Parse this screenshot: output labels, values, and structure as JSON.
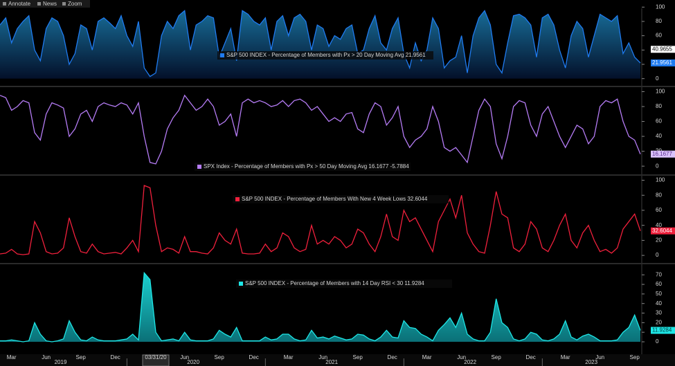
{
  "toolbar": [
    "Annotate",
    "News",
    "Zoom"
  ],
  "chart_data": [
    {
      "type": "area",
      "series": [
        {
          "name": "S&P 500 INDEX - Percentage of Members with Px > 20 Day Moving Avg 21.9561",
          "color": "#1f7bf0",
          "values": [
            75,
            85,
            50,
            70,
            80,
            88,
            40,
            25,
            70,
            85,
            80,
            60,
            20,
            35,
            75,
            70,
            40,
            80,
            85,
            78,
            70,
            88,
            60,
            45,
            80,
            15,
            3,
            8,
            60,
            80,
            70,
            88,
            95,
            40,
            75,
            80,
            88,
            85,
            30,
            50,
            70,
            25,
            95,
            90,
            80,
            75,
            85,
            40,
            80,
            88,
            60,
            85,
            90,
            80,
            40,
            75,
            70,
            45,
            60,
            55,
            70,
            75,
            35,
            40,
            70,
            88,
            50,
            40,
            70,
            85,
            35,
            15,
            50,
            25,
            40,
            85,
            70,
            15,
            25,
            30,
            60,
            8,
            60,
            85,
            95,
            75,
            20,
            8,
            50,
            88,
            90,
            85,
            75,
            30,
            85,
            90,
            75,
            40,
            15,
            60,
            80,
            70,
            30,
            60,
            90,
            85,
            80,
            88,
            35,
            50,
            30,
            21.9561
          ]
        }
      ],
      "ylim": [
        -10,
        108
      ],
      "yticks": [
        0,
        20,
        40,
        60,
        80,
        100
      ],
      "tags": [
        {
          "value": 40.9655,
          "color": "#ffffff",
          "text_color": "#000000"
        },
        {
          "value": 21.9561,
          "color": "#1f7bf0",
          "text_color": "#ffffff"
        }
      ]
    },
    {
      "type": "line",
      "series": [
        {
          "name": "SPX Index - Percentage of Members with Px > 50 Day Moving Avg 16.1677  -5.7884",
          "color": "#b57cf5",
          "values": [
            95,
            92,
            75,
            80,
            88,
            85,
            45,
            35,
            70,
            85,
            82,
            78,
            40,
            50,
            70,
            75,
            60,
            80,
            85,
            82,
            80,
            85,
            82,
            70,
            85,
            40,
            5,
            3,
            20,
            50,
            65,
            75,
            95,
            85,
            75,
            80,
            90,
            80,
            55,
            60,
            70,
            40,
            85,
            90,
            85,
            88,
            85,
            80,
            82,
            88,
            80,
            88,
            90,
            85,
            75,
            80,
            70,
            60,
            65,
            60,
            70,
            72,
            50,
            45,
            70,
            85,
            80,
            55,
            65,
            80,
            40,
            25,
            35,
            40,
            50,
            80,
            60,
            25,
            20,
            25,
            15,
            5,
            40,
            75,
            90,
            80,
            30,
            10,
            40,
            80,
            88,
            85,
            55,
            40,
            70,
            80,
            60,
            40,
            25,
            40,
            55,
            50,
            30,
            40,
            80,
            88,
            85,
            90,
            60,
            40,
            35,
            16.1677
          ]
        }
      ],
      "ylim": [
        -11,
        106
      ],
      "yticks": [
        0,
        20,
        40,
        60,
        80,
        100
      ],
      "tags": [
        {
          "value": 16.1677,
          "color": "#d9c2fa",
          "text_color": "#5a2c8f"
        }
      ]
    },
    {
      "type": "line",
      "series": [
        {
          "name": "S&P 500 INDEX - Percentage of Members With New 4 Week Lows 32.6044",
          "color": "#f0203c",
          "values": [
            2,
            3,
            8,
            2,
            1,
            2,
            45,
            30,
            5,
            2,
            3,
            10,
            50,
            25,
            5,
            3,
            15,
            5,
            2,
            3,
            4,
            2,
            10,
            20,
            5,
            93,
            90,
            40,
            5,
            10,
            8,
            3,
            25,
            5,
            5,
            3,
            2,
            10,
            30,
            20,
            15,
            35,
            3,
            2,
            2,
            3,
            15,
            5,
            10,
            30,
            25,
            10,
            5,
            8,
            40,
            15,
            20,
            15,
            25,
            20,
            10,
            15,
            35,
            30,
            15,
            5,
            25,
            55,
            25,
            20,
            60,
            45,
            50,
            35,
            20,
            5,
            45,
            60,
            75,
            50,
            80,
            30,
            15,
            5,
            3,
            40,
            85,
            55,
            50,
            10,
            5,
            15,
            45,
            35,
            10,
            5,
            20,
            40,
            55,
            20,
            10,
            30,
            40,
            20,
            5,
            8,
            3,
            10,
            35,
            45,
            55,
            32.6044
          ]
        }
      ],
      "ylim": [
        -10,
        106
      ],
      "yticks": [
        0,
        20,
        40,
        60,
        80,
        100
      ],
      "tags": [
        {
          "value": 32.6044,
          "color": "#f0203c",
          "text_color": "#ffffff"
        }
      ]
    },
    {
      "type": "area",
      "series": [
        {
          "name": "S&P 500 INDEX - Percentage of Members with 14 Day RSI < 30 11.9284",
          "color": "#1ee6e6",
          "values": [
            1,
            1,
            2,
            1,
            0,
            1,
            20,
            8,
            1,
            0,
            1,
            3,
            22,
            10,
            2,
            1,
            5,
            2,
            1,
            1,
            1,
            2,
            3,
            8,
            2,
            72,
            65,
            10,
            1,
            2,
            3,
            1,
            10,
            2,
            1,
            1,
            1,
            3,
            12,
            8,
            5,
            15,
            1,
            1,
            1,
            1,
            5,
            2,
            3,
            8,
            8,
            3,
            1,
            2,
            12,
            4,
            5,
            3,
            6,
            4,
            2,
            3,
            8,
            7,
            3,
            1,
            5,
            12,
            5,
            4,
            22,
            15,
            14,
            8,
            5,
            1,
            12,
            18,
            25,
            15,
            30,
            8,
            3,
            1,
            1,
            10,
            45,
            20,
            15,
            3,
            1,
            3,
            10,
            8,
            2,
            1,
            3,
            8,
            22,
            5,
            2,
            6,
            8,
            5,
            1,
            1,
            1,
            2,
            10,
            15,
            28,
            11.9284
          ]
        }
      ],
      "ylim": [
        -13,
        81
      ],
      "yticks": [
        0,
        10,
        20,
        30,
        40,
        50,
        60,
        70
      ],
      "tags": [
        {
          "value": 11.9284,
          "color": "#1ee6e6",
          "text_color": "#003a3a"
        }
      ],
      "categories": [
        null,
        null,
        "Mar",
        null,
        null,
        null,
        null,
        null,
        "Jun",
        null,
        null,
        null,
        null,
        null,
        "Sep",
        null,
        null,
        null,
        null,
        null,
        "Dec",
        null,
        null,
        null,
        null,
        null,
        null,
        "03/31/20",
        null,
        null,
        null,
        null,
        "Jun",
        null,
        null,
        null,
        null,
        null,
        "Sep",
        null,
        null,
        null,
        null,
        null,
        "Dec",
        null,
        null,
        null,
        null,
        null,
        "Mar",
        null,
        null,
        null,
        null,
        null,
        "Jun",
        null,
        null,
        null,
        null,
        null,
        "Sep",
        null,
        null,
        null,
        null,
        null,
        "Dec",
        null,
        null,
        null,
        null,
        null,
        "Mar",
        null,
        null,
        null,
        null,
        null,
        "Jun",
        null,
        null,
        null,
        null,
        null,
        "Sep",
        null,
        null,
        null,
        null,
        null,
        "Dec",
        null,
        null,
        null,
        null,
        null,
        "Mar",
        null,
        null,
        null,
        null,
        null,
        "Jun",
        null,
        null,
        null,
        null,
        null,
        "Sep",
        null
      ],
      "years": [
        "2019",
        "2020",
        "2021",
        "2022",
        "2023"
      ]
    }
  ]
}
